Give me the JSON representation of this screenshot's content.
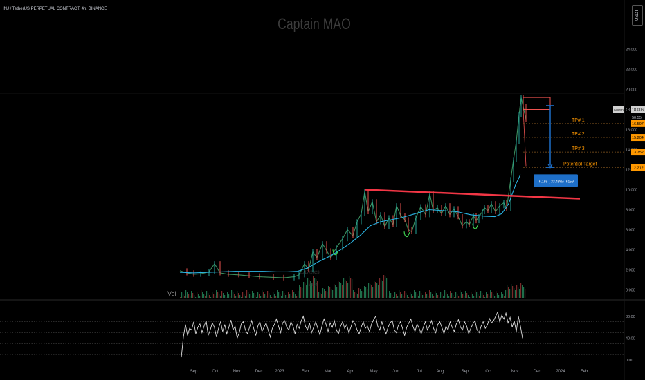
{
  "header": {
    "symbol_title": "INJ / TetherUS PERPETUAL CONTRACT, 4h, BINANCE",
    "currency_button": "USDT",
    "watermark": "Captain MAO"
  },
  "colors": {
    "background": "#000000",
    "candle_up": "#26a69a",
    "candle_down": "#ef5350",
    "moving_average": "#2bb6e6",
    "trendline": "#f23645",
    "tp_label": "#ff9800",
    "measure_box": "#1e6fc8",
    "rsi_line": "#e0e0e0",
    "hook_arrows": "#3fcf4f"
  },
  "chart_data": [
    {
      "type": "line",
      "title": "",
      "series": [
        {
          "name": "",
          "values": [
            [
              0,
              1.9
            ],
            [
              10,
              1.7
            ],
            [
              20,
              1.55
            ],
            [
              30,
              1.6
            ],
            [
              42,
              1.8
            ],
            [
              50,
              2.6
            ],
            [
              58,
              1.7
            ],
            [
              70,
              1.55
            ],
            [
              85,
              1.5
            ],
            [
              100,
              1.4
            ],
            [
              115,
              1.3
            ],
            [
              135,
              1.25
            ],
            [
              150,
              1.2
            ],
            [
              165,
              1.3
            ],
            [
              172,
              1.5
            ],
            [
              180,
              2.6
            ],
            [
              186,
              2.0
            ],
            [
              192,
              3.8
            ],
            [
              198,
              3.2
            ],
            [
              206,
              4.6
            ],
            [
              212,
              3.9
            ],
            [
              218,
              3.2
            ],
            [
              226,
              4.2
            ],
            [
              235,
              5.1
            ],
            [
              242,
              6.0
            ],
            [
              250,
              5.4
            ],
            [
              256,
              6.8
            ],
            [
              262,
              7.6
            ],
            [
              267,
              9.8
            ],
            [
              272,
              7.8
            ],
            [
              278,
              8.8
            ],
            [
              284,
              6.8
            ],
            [
              290,
              7.5
            ],
            [
              296,
              6.3
            ],
            [
              302,
              7.2
            ],
            [
              308,
              6.5
            ],
            [
              313,
              8.4
            ],
            [
              319,
              7.4
            ],
            [
              325,
              7.0
            ],
            [
              330,
              6.0
            ],
            [
              335,
              5.8
            ],
            [
              341,
              7.2
            ],
            [
              348,
              8.3
            ],
            [
              355,
              7.5
            ],
            [
              361,
              9.6
            ],
            [
              366,
              7.9
            ],
            [
              372,
              8.2
            ],
            [
              378,
              7.6
            ],
            [
              384,
              8.4
            ],
            [
              390,
              7.5
            ],
            [
              396,
              8.1
            ],
            [
              402,
              7.3
            ],
            [
              408,
              6.4
            ],
            [
              414,
              6.8
            ],
            [
              418,
              6.5
            ],
            [
              424,
              7.4
            ],
            [
              428,
              6.9
            ],
            [
              432,
              7.3
            ],
            [
              437,
              7.8
            ],
            [
              440,
              8.2
            ],
            [
              445,
              7.9
            ],
            [
              450,
              8.6
            ],
            [
              456,
              7.8
            ],
            [
              462,
              8.4
            ],
            [
              468,
              8.7
            ],
            [
              472,
              8.1
            ],
            [
              478,
              11.0
            ],
            [
              482,
              13.0
            ],
            [
              486,
              14.8
            ],
            [
              490,
              17.5
            ],
            [
              493,
              19.2
            ],
            [
              496,
              18.3
            ],
            [
              500,
              17.0
            ]
          ]
        },
        {
          "name": "",
          "values": [
            [
              0,
              1.75
            ],
            [
              20,
              1.7
            ],
            [
              40,
              1.75
            ],
            [
              60,
              1.8
            ],
            [
              80,
              1.85
            ],
            [
              100,
              1.85
            ],
            [
              120,
              1.85
            ],
            [
              140,
              1.8
            ],
            [
              155,
              1.8
            ],
            [
              170,
              1.85
            ],
            [
              185,
              2.2
            ],
            [
              200,
              2.8
            ],
            [
              215,
              3.3
            ],
            [
              230,
              3.9
            ],
            [
              245,
              4.6
            ],
            [
              260,
              5.4
            ],
            [
              275,
              6.4
            ],
            [
              290,
              6.8
            ],
            [
              305,
              7.0
            ],
            [
              320,
              7.2
            ],
            [
              340,
              7.6
            ],
            [
              360,
              8.0
            ],
            [
              380,
              7.9
            ],
            [
              400,
              7.8
            ],
            [
              420,
              7.5
            ],
            [
              440,
              7.35
            ],
            [
              455,
              7.3
            ],
            [
              465,
              7.6
            ],
            [
              475,
              8.6
            ],
            [
              485,
              10.5
            ],
            [
              492,
              11.5
            ]
          ]
        }
      ],
      "ylim": [
        -1.0,
        27.0
      ],
      "y_ticks": [
        "0.000",
        "2.000",
        "4.000",
        "6.000",
        "8.000",
        "10.000",
        "12.000",
        "14.000",
        "16.000",
        "18.000",
        "20.000",
        "22.000",
        "24.000"
      ],
      "y_tick_values": [
        0,
        2,
        4,
        6,
        8,
        10,
        12,
        14,
        16,
        18,
        20,
        22,
        24
      ],
      "x_ticks": [
        "Sep",
        "Oct",
        "Nov",
        "Dec",
        "2023",
        "Feb",
        "Mar",
        "Apr",
        "May",
        "Jun",
        "Jul",
        "Aug",
        "Sep",
        "Oct",
        "Nov",
        "Dec",
        "2024",
        "Feb"
      ],
      "trendline": {
        "from": [
          267,
          10.0
        ],
        "to": [
          578,
          9.1
        ]
      },
      "price_badges": [
        {
          "label": "INJUSDT.P",
          "value": "18.006",
          "y": 18.006,
          "bg": "#d0d0d0",
          "fg": "#000000"
        },
        {
          "label": "",
          "value": "50:55",
          "y": 17.2,
          "bg": "#000000",
          "fg": "#b2b5be"
        },
        {
          "label": "",
          "value": "16.597",
          "y": 16.597,
          "bg": "#ff9800",
          "fg": "#000000"
        },
        {
          "label": "",
          "value": "15.204",
          "y": 15.204,
          "bg": "#ff9800",
          "fg": "#000000"
        },
        {
          "label": "",
          "value": "13.752",
          "y": 13.752,
          "bg": "#ff9800",
          "fg": "#000000"
        },
        {
          "label": "",
          "value": "12.212",
          "y": 12.212,
          "bg": "#ff9800",
          "fg": "#000000"
        }
      ],
      "targets": [
        {
          "label": "TP# 1",
          "y": 16.597
        },
        {
          "label": "TP# 2",
          "y": 15.204
        },
        {
          "label": "TP# 3",
          "y": 13.752
        },
        {
          "label": "Potential Target",
          "y": 12.212
        }
      ],
      "entry_zone": {
        "x_from": 496,
        "x_to": 535,
        "y_from": 18.0,
        "y_to": 19.2
      },
      "measure": {
        "x": 535,
        "from": 18.4,
        "to": 12.212,
        "label": "-6.159 (-33.48%) -6159"
      },
      "volume_label": "Vol",
      "volume_annotations": [
        "11/17/2023",
        "—— 2404"
      ]
    },
    {
      "type": "line",
      "title": "",
      "ylim": [
        -5,
        100
      ],
      "y_ticks": [
        "0.00",
        "40.00",
        "80.00"
      ],
      "y_tick_values": [
        0,
        40,
        80
      ],
      "dotted_levels": [
        70,
        50,
        30,
        10
      ],
      "values": [
        5,
        42,
        65,
        45,
        58,
        55,
        70,
        48,
        60,
        66,
        50,
        62,
        72,
        45,
        55,
        68,
        60,
        42,
        58,
        70,
        52,
        65,
        48,
        60,
        73,
        55,
        62,
        40,
        50,
        66,
        70,
        55,
        48,
        60,
        72,
        58,
        45,
        62,
        70,
        52,
        60,
        68,
        55,
        42,
        58,
        65,
        75,
        62,
        50,
        68,
        72,
        60,
        55,
        70,
        62,
        48,
        65,
        58,
        72,
        80,
        62,
        55,
        68,
        50,
        60,
        70,
        58,
        46,
        62,
        75,
        65,
        52,
        68,
        60,
        72,
        55,
        48,
        62,
        70,
        58,
        65,
        50,
        60,
        72,
        66,
        55,
        48,
        60,
        70,
        58,
        62,
        52,
        66,
        74,
        80,
        62,
        55,
        70,
        58,
        48,
        60,
        68,
        72,
        55,
        50,
        64,
        70,
        58,
        45,
        60,
        68,
        75,
        62,
        52,
        66,
        58,
        48,
        60,
        70,
        55,
        62,
        72,
        58,
        50,
        65,
        70,
        60,
        48,
        62,
        55,
        70,
        60,
        52,
        66,
        74,
        60,
        55,
        70,
        62,
        48,
        58,
        66,
        72,
        55,
        50,
        62,
        70,
        58,
        64,
        76,
        68,
        72,
        80,
        88,
        70,
        82,
        75,
        86,
        68,
        78,
        60,
        72,
        52,
        80,
        62,
        40
      ]
    }
  ]
}
